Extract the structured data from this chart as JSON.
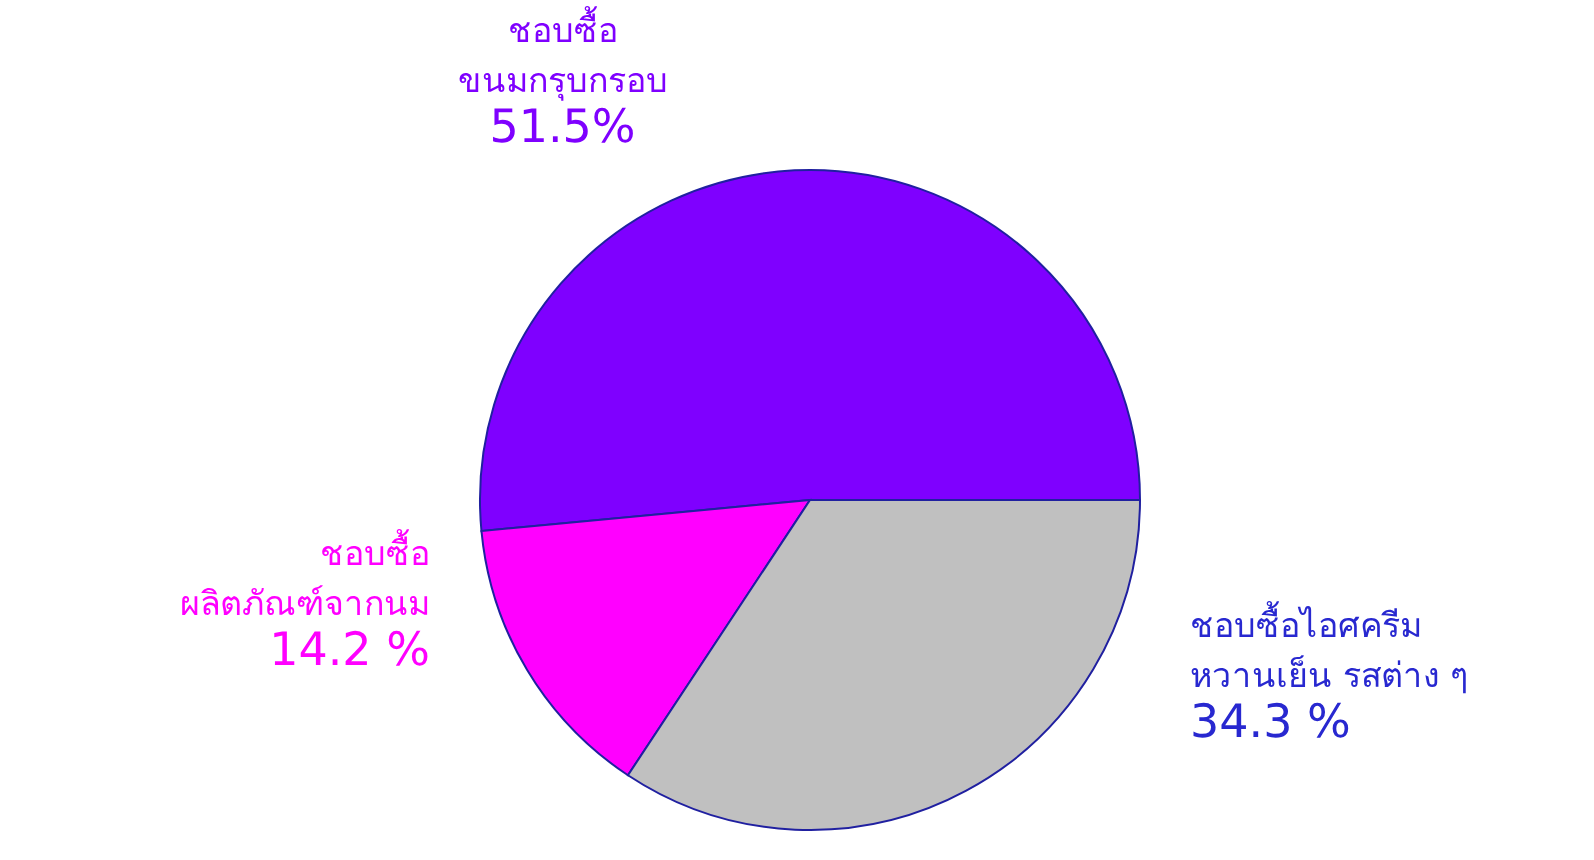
{
  "chart_data": {
    "type": "pie",
    "categories": [
      "ชอบซื้อ\nขนมกรุบกรอบ",
      "ชอบซื้อ\nผลิตภัณฑ์จากนม",
      "ชอบซื้อไอศครีม\nหวานเย็น รสต่าง ๆ"
    ],
    "values": [
      51.5,
      14.2,
      34.3
    ],
    "value_labels": [
      "51.5%",
      "14.2  %",
      "34.3  %"
    ],
    "colors": [
      "#7f00ff",
      "#ff00ff",
      "#c0c0c0"
    ]
  }
}
